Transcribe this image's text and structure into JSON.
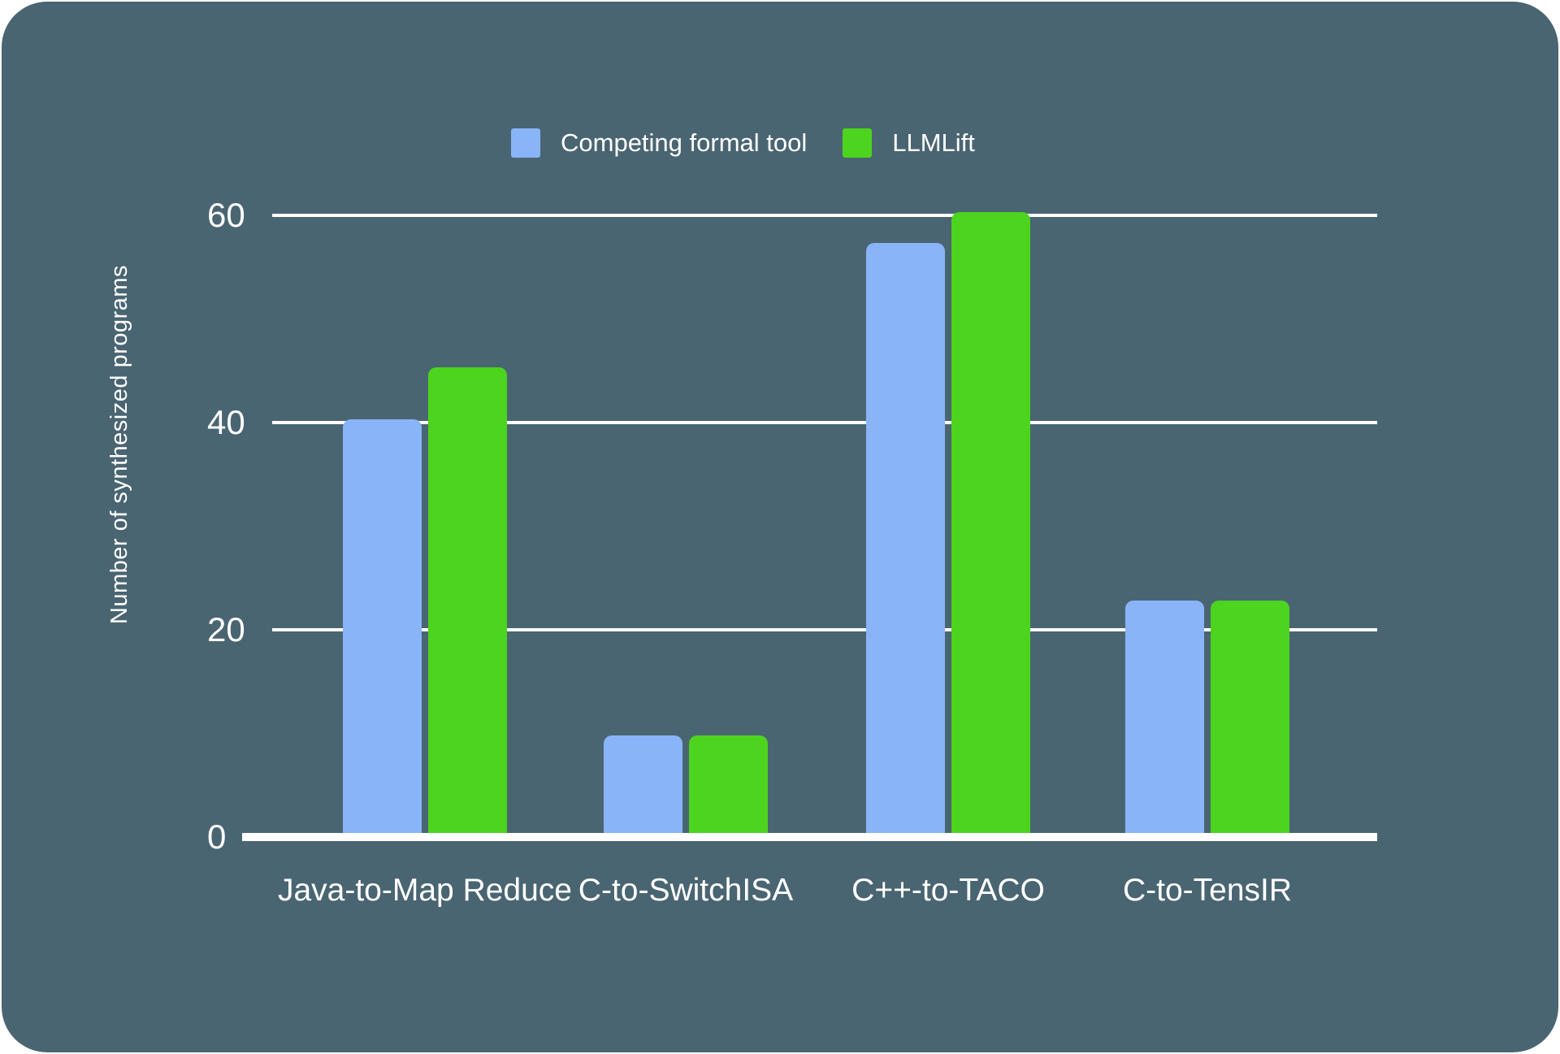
{
  "panel": {
    "background": "#4a6572",
    "page_background": "#ffffff"
  },
  "chart_data": {
    "type": "bar",
    "title": "",
    "categories": [
      "Java-to-Map Reduce",
      "C-to-SwitchISA",
      "C++-to-TACO",
      "C-to-TensIR"
    ],
    "series": [
      {
        "name": "Competing formal tool",
        "color": "#89b4f8",
        "values": [
          40,
          9.5,
          57,
          22.5
        ]
      },
      {
        "name": "LLMLift",
        "color": "#4cd41e",
        "values": [
          45,
          9.5,
          60,
          22.5
        ]
      }
    ],
    "xlabel": "",
    "ylabel": "Number of synthesized programs",
    "ylim": [
      0,
      60
    ],
    "yticks": [
      0,
      20,
      40,
      60
    ],
    "grid": true,
    "legend_position": "top-center",
    "axis_color": "#ffffff",
    "text_color": "#ffffff"
  }
}
